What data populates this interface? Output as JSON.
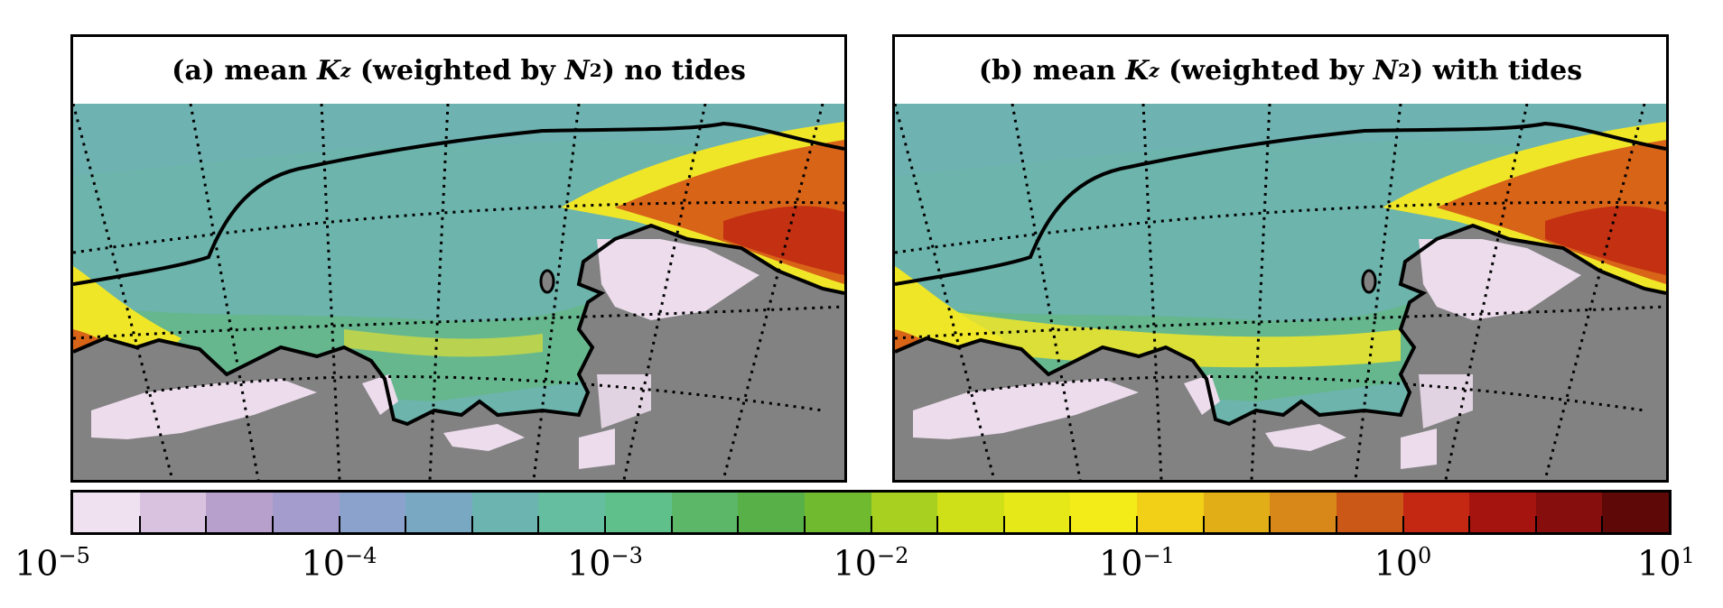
{
  "chart_data": [
    {
      "type": "heatmap",
      "panel": "a",
      "title_prefix": "(a) mean",
      "title_var": "K",
      "title_sub": "z",
      "title_mid": "(weighted by",
      "title_n": "N",
      "title_pow": "2",
      "title_suffix": ") no tides",
      "colorscale": "log",
      "range": [
        1e-05,
        10
      ]
    },
    {
      "type": "heatmap",
      "panel": "b",
      "title_prefix": "(b) mean",
      "title_var": "K",
      "title_sub": "z",
      "title_mid": "(weighted by",
      "title_n": "N",
      "title_pow": "2",
      "title_suffix": ") with tides",
      "colorscale": "log",
      "range": [
        1e-05,
        10
      ]
    }
  ],
  "colorbar": {
    "tick_base": "10",
    "tick_exponents": [
      "−5",
      "−4",
      "−3",
      "−2",
      "−1",
      "0",
      "1"
    ],
    "colors": [
      "#efe1f0",
      "#d8c2e0",
      "#b8a0cc",
      "#a49ccd",
      "#8aa2cc",
      "#78a8c2",
      "#6bb4b0",
      "#66bea0",
      "#60c08c",
      "#5cb868",
      "#58b048",
      "#70ba30",
      "#a8d020",
      "#d0e018",
      "#e6e818",
      "#f4ec18",
      "#f2d018",
      "#e2ae18",
      "#d88818",
      "#cc5818",
      "#c42812",
      "#a61410",
      "#860e0c",
      "#5e0808"
    ]
  },
  "map_colors": {
    "land": "#828282",
    "ice": "#ecdcec",
    "ocean": "#6cb4ac",
    "shelf": "#64b882",
    "front": "#f0e628",
    "hot": "#d86418",
    "hottest": "#c43012"
  }
}
